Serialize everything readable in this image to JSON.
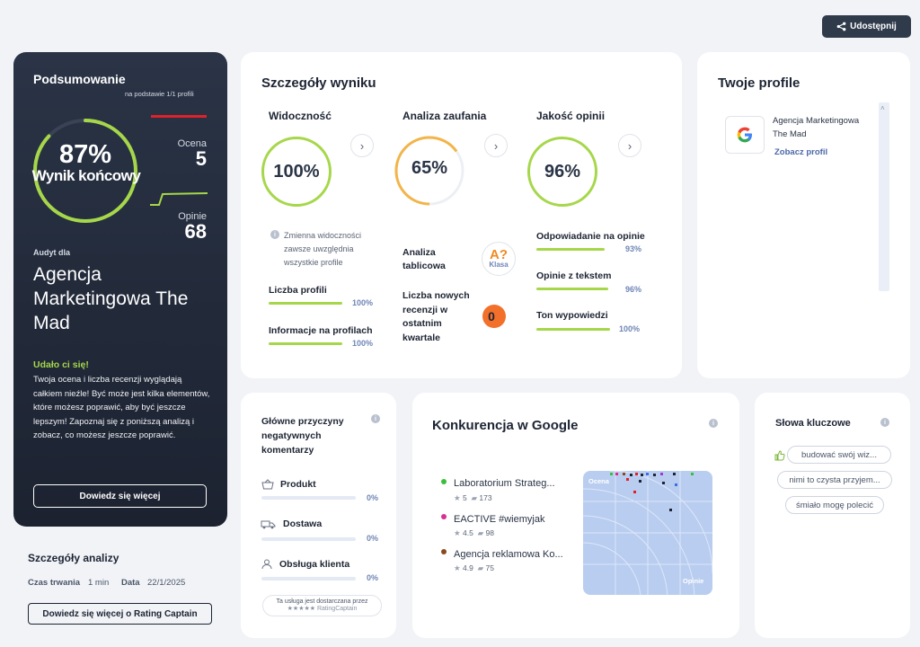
{
  "header": {
    "share_label": "Udostępnij"
  },
  "summary": {
    "title": "Podsumowanie",
    "basis": "na podstawie 1/1 profili",
    "score_pct": "87%",
    "score_label": "Wynik końcowy",
    "rating_label": "Ocena",
    "rating_value": "5",
    "reviews_label": "Opinie",
    "reviews_value": "68",
    "audit_for": "Audyt dla",
    "company": "Agencja Marketingowa The Mad",
    "success_title": "Udało ci się!",
    "success_text": "Twoja ocena i liczba recenzji wyglądają całkiem nieźle! Być może jest kilka elementów, które możesz poprawić, aby być jeszcze lepszym! Zapoznaj się z poniższą analizą i zobacz, co możesz jeszcze poprawić.",
    "learn_more": "Dowiedz się więcej",
    "score_fraction": 0.87
  },
  "analysis": {
    "title": "Szczegóły analizy",
    "duration_label": "Czas trwania",
    "duration_value": "1 min",
    "date_label": "Data",
    "date_value": "22/1/2025",
    "more_button": "Dowiedz się więcej o Rating Captain"
  },
  "details": {
    "title": "Szczegóły wyniku",
    "visibility": {
      "title": "Widoczność",
      "value": "100%",
      "note": "Zmienna widoczności zawsze uwzględnia wszystkie profile",
      "items": [
        {
          "label": "Liczba profili",
          "pct": "100%",
          "fraction": 1.0
        },
        {
          "label": "Informacje na profilach",
          "pct": "100%",
          "fraction": 1.0
        }
      ]
    },
    "trust": {
      "title": "Analiza zaufania",
      "value": "65%",
      "table_label": "Analiza tablicowa",
      "class_badge": "A?",
      "class_label": "Klasa",
      "new_reviews_label": "Liczba nowych recenzji w ostatnim kwartale",
      "new_reviews_value": "0"
    },
    "quality": {
      "title": "Jakość opinii",
      "value": "96%",
      "items": [
        {
          "label": "Odpowiadanie na opinie",
          "pct": "93%",
          "fraction": 0.93
        },
        {
          "label": "Opinie z tekstem",
          "pct": "96%",
          "fraction": 0.96
        },
        {
          "label": "Ton wypowiedzi",
          "pct": "100%",
          "fraction": 1.0
        }
      ]
    }
  },
  "profiles": {
    "title": "Twoje profile",
    "items": [
      {
        "name": "Agencja Marketingowa The Mad",
        "link": "Zobacz profil"
      }
    ]
  },
  "negatives": {
    "title": "Główne przyczyny negatywnych komentarzy",
    "items": [
      {
        "label": "Produkt",
        "pct": "0%",
        "icon": "basket-icon"
      },
      {
        "label": "Dostawa",
        "pct": "0%",
        "icon": "truck-icon"
      },
      {
        "label": "Obsługa klienta",
        "pct": "0%",
        "icon": "person-icon"
      }
    ],
    "footer_line1": "Ta usługa jest dostarczana przez",
    "footer_line2": "RatingCaptain"
  },
  "competition": {
    "title": "Konkurencja w Google",
    "axis_top": "Ocena",
    "axis_bottom": "Opinie",
    "items": [
      {
        "name": "Laboratorium Strateg...",
        "rating": "5",
        "reviews": "173",
        "color": "#3bbf3b"
      },
      {
        "name": "EACTIVE #wiemyjak",
        "rating": "4.5",
        "reviews": "98",
        "color": "#d9308f"
      },
      {
        "name": "Agencja reklamowa Ko...",
        "rating": "4.9",
        "reviews": "75",
        "color": "#8a4a1c"
      }
    ]
  },
  "keywords": {
    "title": "Słowa kluczowe",
    "items": [
      "budować swój wiz...",
      "nimi to czysta przyjem...",
      "śmiało mogę polecić"
    ]
  },
  "colors": {
    "accent_green": "#a6d74a",
    "trust_orange": "#f3b448",
    "dark_panel": "#222b3a"
  }
}
